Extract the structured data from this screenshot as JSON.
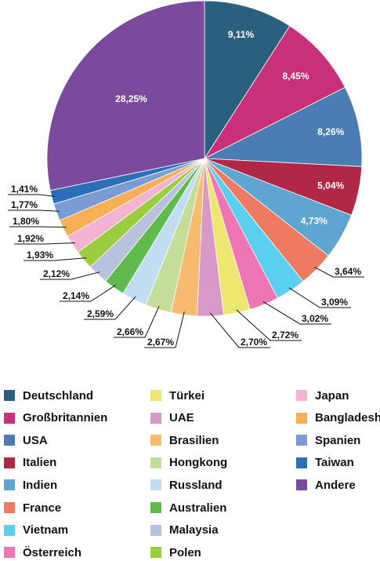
{
  "chart_data": {
    "type": "pie",
    "categories": [
      "Deutschland",
      "Großbritannien",
      "USA",
      "Italien",
      "Indien",
      "France",
      "Vietnam",
      "Österreich",
      "Türkei",
      "UAE",
      "Brasilien",
      "Hongkong",
      "Russland",
      "Australien",
      "Malaysia",
      "Polen",
      "Japan",
      "Bangladesh",
      "Spanien",
      "Taiwan",
      "Andere"
    ],
    "values": [
      9.11,
      8.45,
      8.26,
      5.04,
      4.73,
      3.64,
      3.09,
      3.02,
      2.72,
      2.7,
      2.67,
      2.66,
      2.59,
      2.14,
      2.12,
      1.93,
      1.92,
      1.8,
      1.77,
      1.41,
      28.25
    ],
    "value_labels": [
      "9,11%",
      "8,45%",
      "8,26%",
      "5,04%",
      "4,73%",
      "3,64%",
      "3,09%",
      "3,02%",
      "2,72%",
      "2,70%",
      "2,67%",
      "2,66%",
      "2,59%",
      "2,14%",
      "2,12%",
      "1,93%",
      "1,92%",
      "1,80%",
      "1,77%",
      "1,41%",
      "28,25%"
    ],
    "colors": [
      "#2b5f7e",
      "#c8307a",
      "#4a7db3",
      "#b02845",
      "#5ea6cf",
      "#ef7a62",
      "#5bcff0",
      "#ee76b5",
      "#ede772",
      "#d999c6",
      "#f6bb6e",
      "#c4dd99",
      "#c2dcf2",
      "#5fbb4d",
      "#b9c1dc",
      "#9acd3d",
      "#f4b3d2",
      "#f8ae55",
      "#7a9bd4",
      "#2c6fb9",
      "#7a4a9d"
    ],
    "legend_position": "bottom"
  }
}
